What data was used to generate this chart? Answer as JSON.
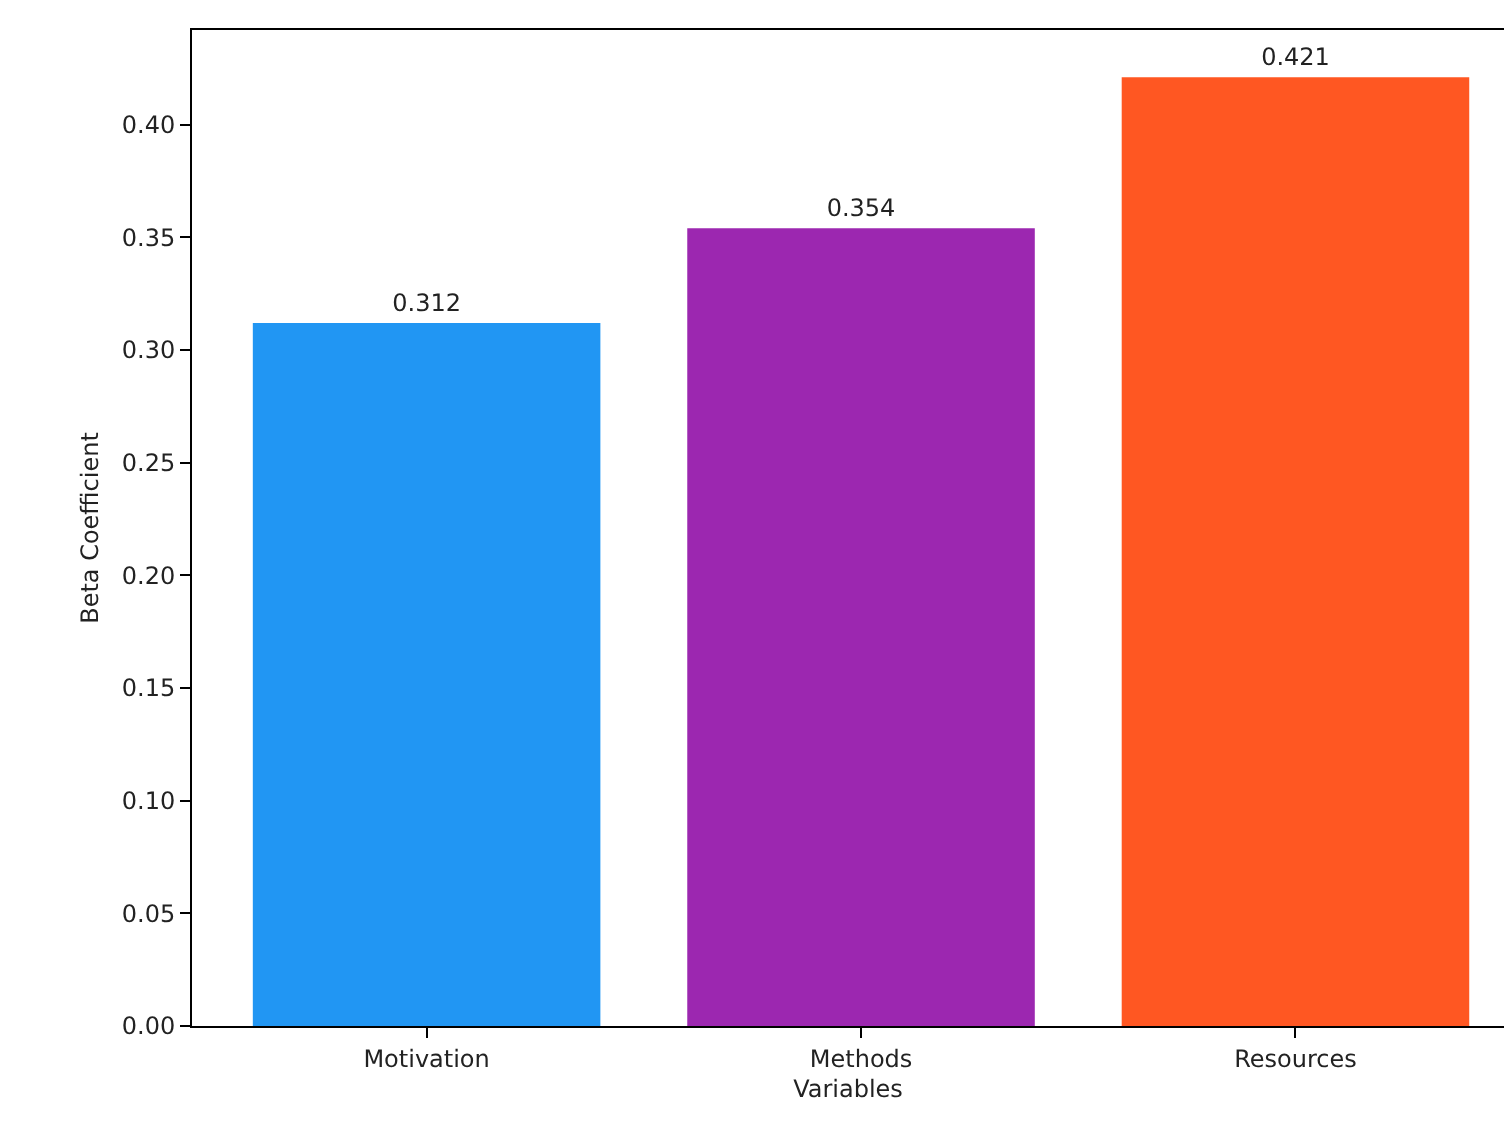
{
  "chart_data": {
    "type": "bar",
    "xlabel": "Variables",
    "ylabel": "Beta Coefficient",
    "categories": [
      "Motivation",
      "Methods",
      "Resources"
    ],
    "values": [
      0.312,
      0.354,
      0.421
    ],
    "colors": [
      "#2196f3",
      "#9c27b0",
      "#ff5722"
    ],
    "ylim": [
      0,
      0.442
    ],
    "yticks": [
      {
        "value": 0,
        "label": "0.00"
      },
      {
        "value": 0.05,
        "label": "0.05"
      },
      {
        "value": 0.1,
        "label": "0.10"
      },
      {
        "value": 0.15,
        "label": "0.15"
      },
      {
        "value": 0.2,
        "label": "0.20"
      },
      {
        "value": 0.25,
        "label": "0.25"
      },
      {
        "value": 0.3,
        "label": "0.30"
      },
      {
        "value": 0.35,
        "label": "0.35"
      },
      {
        "value": 0.4,
        "label": "0.40"
      }
    ],
    "data_labels": true,
    "grid": false,
    "legend": false
  }
}
